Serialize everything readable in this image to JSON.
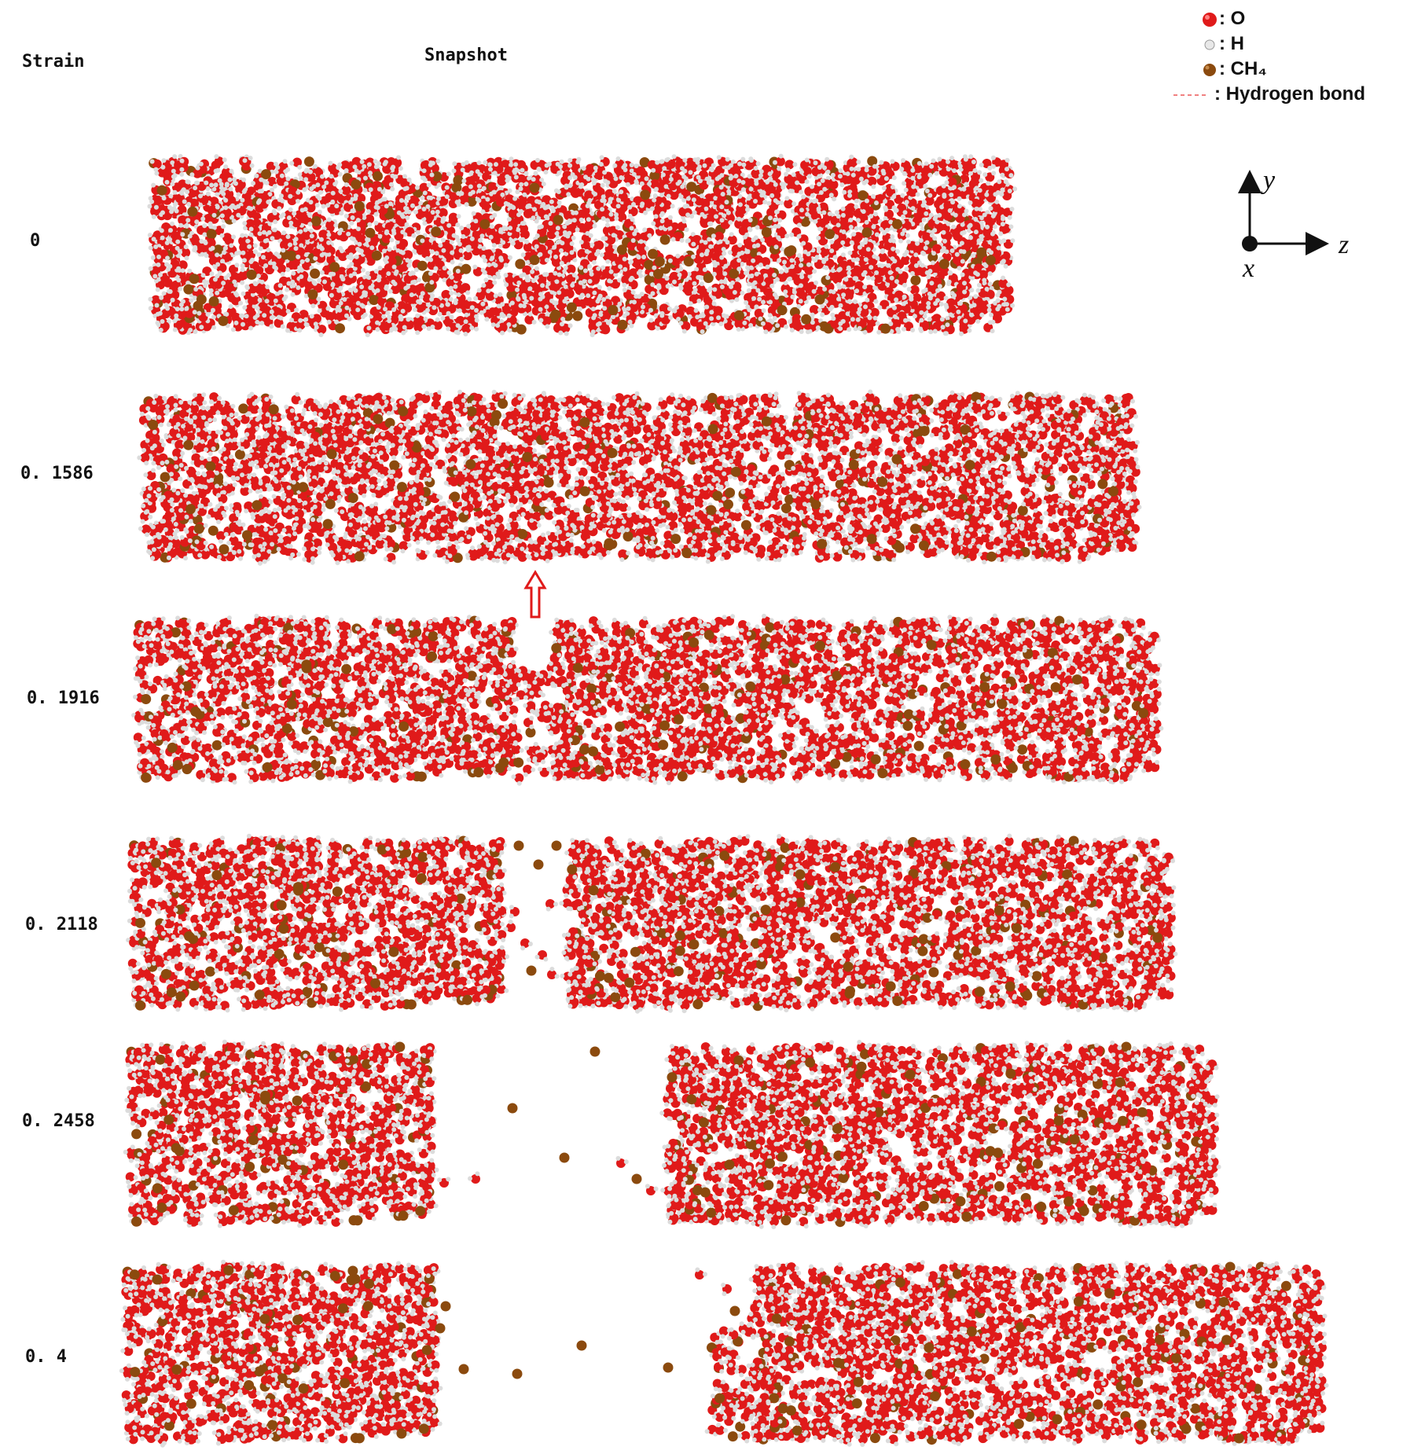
{
  "header": {
    "strain_label": "Strain",
    "snapshot_label": "Snapshot"
  },
  "legend": {
    "items": [
      {
        "symbol": "O-atom-icon",
        "label": ": O",
        "color": "#e01a1a"
      },
      {
        "symbol": "H-atom-icon",
        "label": ": H",
        "color": "#e8e8e8"
      },
      {
        "symbol": "CH4-molecule-icon",
        "label": ": CH₄",
        "color": "#8b4a0e"
      },
      {
        "symbol": "hydrogen-bond-icon",
        "label": ": Hydrogen bond",
        "color": "#f08080"
      }
    ]
  },
  "axes": {
    "y": "y",
    "z": "z",
    "x": "x"
  },
  "snapshots": [
    {
      "strain": "0"
    },
    {
      "strain": "0. 1586"
    },
    {
      "strain": "0. 1916"
    },
    {
      "strain": "0. 2118"
    },
    {
      "strain": "0. 2458"
    },
    {
      "strain": "0. 4"
    }
  ],
  "colors": {
    "oxygen": "#e01a1a",
    "hydrogen": "#dcdcdc",
    "methane": "#8b4a0e",
    "arrow": "#e01a1a"
  }
}
